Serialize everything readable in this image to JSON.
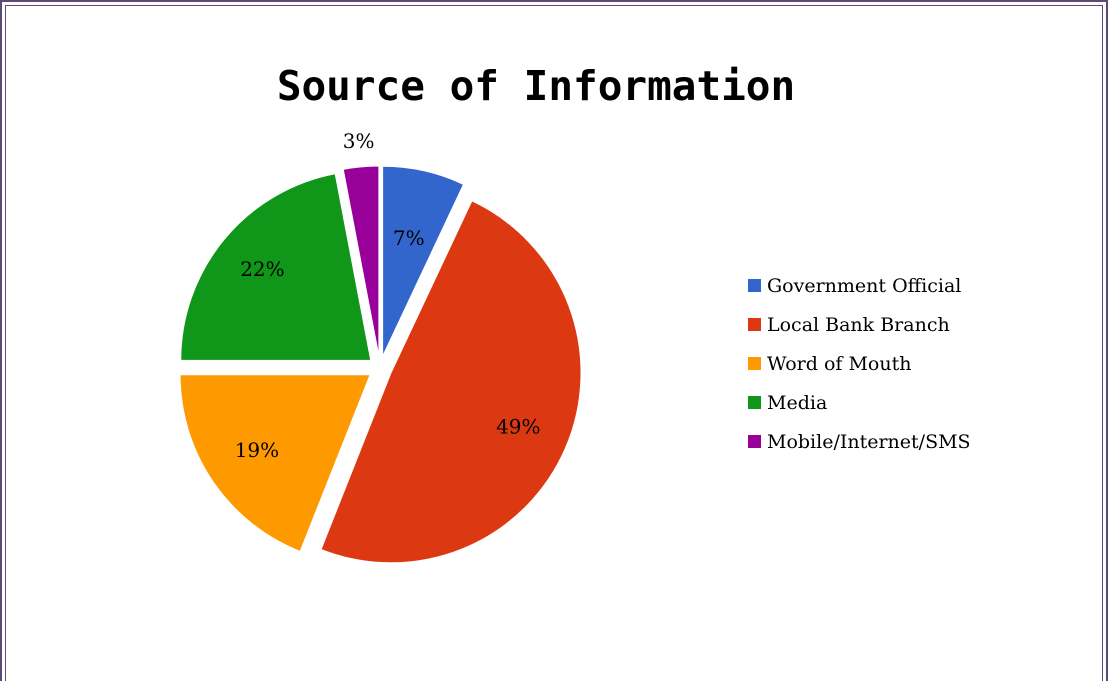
{
  "chart_data": {
    "type": "pie",
    "title": "Source of Information",
    "legend_position": "right",
    "slices": [
      {
        "label": "Government Official",
        "value": 7,
        "display": "7%",
        "color": "#3366cc"
      },
      {
        "label": "Local Bank Branch",
        "value": 49,
        "display": "49%",
        "color": "#dc3912"
      },
      {
        "label": "Word of Mouth",
        "value": 19,
        "display": "19%",
        "color": "#ff9900"
      },
      {
        "label": "Media",
        "value": 22,
        "display": "22%",
        "color": "#109618"
      },
      {
        "label": "Mobile/Internet/SMS",
        "value": 3,
        "display": "3%",
        "color": "#990099"
      }
    ]
  }
}
